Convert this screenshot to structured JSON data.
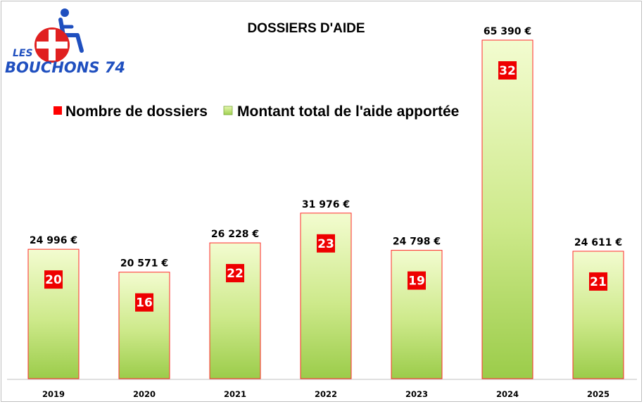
{
  "logo": {
    "line1": "LES",
    "line2": "BOUCHONS 74"
  },
  "chart_data": {
    "type": "bar",
    "title": "DOSSIERS D'AIDE",
    "legend": [
      {
        "name": "Nombre de dossiers",
        "color": "#ff0000"
      },
      {
        "name": "Montant total de l'aide apportée",
        "color": "#b5e07a"
      }
    ],
    "categories": [
      "2019",
      "2020",
      "2021",
      "2022",
      "2023",
      "2024",
      "2025"
    ],
    "series": [
      {
        "name": "Montant total de l'aide apportée",
        "values": [
          24996,
          20571,
          26228,
          31976,
          24798,
          65390,
          24611
        ]
      },
      {
        "name": "Nombre de dossiers",
        "values": [
          20,
          16,
          22,
          23,
          19,
          32,
          21
        ]
      }
    ],
    "amount_labels": [
      "24 996 €",
      "20 571 €",
      "26 228 €",
      "31 976 €",
      "24 798 €",
      "65 390 €",
      "24 611 €"
    ],
    "ylim": [
      0,
      70000
    ],
    "grid": false,
    "xlabel": "",
    "ylabel": ""
  }
}
